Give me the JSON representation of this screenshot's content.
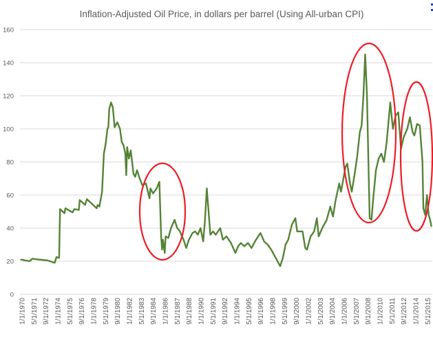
{
  "chart_data": {
    "type": "line",
    "title": "Inflation-Adjusted Oil Price, in dollars per barrel (Using All-urban CPI)",
    "xlabel": "",
    "ylabel": "",
    "ylim": [
      0,
      160
    ],
    "yticks": [
      0,
      20,
      40,
      60,
      80,
      100,
      120,
      140,
      160
    ],
    "grid": true,
    "legend": "none",
    "line_color": "#548235",
    "annotation_color": "#ee1c25",
    "xtick_labels": [
      "1/1/1970",
      "5/1/1971",
      "9/1/1972",
      "1/1/1974",
      "5/1/1975",
      "9/1/1976",
      "1/1/1978",
      "5/1/1979",
      "9/1/1980",
      "1/1/1982",
      "5/1/1983",
      "9/1/1984",
      "1/1/1986",
      "5/1/1987",
      "9/1/1988",
      "1/1/1990",
      "5/1/1991",
      "9/1/1992",
      "1/1/1994",
      "5/1/1995",
      "9/1/1996",
      "1/1/1998",
      "5/1/1999",
      "9/1/2000",
      "1/1/2002",
      "5/1/2003",
      "9/1/2004",
      "1/1/2006",
      "5/1/2007",
      "9/1/2008",
      "1/1/2010",
      "5/1/2011",
      "9/1/2012",
      "1/1/2014",
      "5/1/2015"
    ],
    "series": [
      {
        "name": "Inflation-Adjusted Oil Price",
        "x": [
          1970.0,
          1971.0,
          1971.3,
          1972.0,
          1973.0,
          1973.8,
          1974.0,
          1974.3,
          1974.4,
          1974.9,
          1975.0,
          1975.8,
          1976.0,
          1976.5,
          1976.6,
          1977.2,
          1977.4,
          1978.5,
          1978.6,
          1978.8,
          1979.1,
          1979.3,
          1979.5,
          1979.7,
          1979.8,
          1979.9,
          1980.1,
          1980.3,
          1980.5,
          1980.8,
          1981.1,
          1981.3,
          1981.5,
          1981.7,
          1981.8,
          1981.9,
          1982.1,
          1982.3,
          1982.5,
          1982.6,
          1982.8,
          1983.0,
          1983.3,
          1983.6,
          1984.0,
          1984.4,
          1984.5,
          1984.8,
          1985.2,
          1985.5,
          1985.7,
          1985.8,
          1985.9,
          1986.1,
          1986.2,
          1986.5,
          1986.8,
          1987.2,
          1987.5,
          1987.8,
          1988.2,
          1988.5,
          1988.8,
          1989.2,
          1989.5,
          1989.8,
          1990.1,
          1990.4,
          1990.6,
          1990.8,
          1991.0,
          1991.2,
          1991.5,
          1991.8,
          1992.3,
          1992.6,
          1993.0,
          1993.5,
          1994.0,
          1994.3,
          1994.6,
          1995.0,
          1995.4,
          1995.8,
          1996.3,
          1996.8,
          1997.2,
          1997.6,
          1998.0,
          1998.4,
          1998.8,
          1999.0,
          1999.3,
          1999.6,
          1999.9,
          2000.3,
          2000.7,
          2000.9,
          2001.5,
          2001.8,
          2002.0,
          2002.4,
          2002.8,
          2003.1,
          2003.3,
          2003.7,
          2004.2,
          2004.6,
          2004.9,
          2005.2,
          2005.6,
          2005.8,
          2006.3,
          2006.5,
          2006.8,
          2007.0,
          2007.3,
          2007.6,
          2007.9,
          2008.1,
          2008.3,
          2008.5,
          2008.7,
          2008.9,
          2009.0,
          2009.2,
          2009.4,
          2009.7,
          2010.0,
          2010.3,
          2010.6,
          2010.9,
          2011.3,
          2011.6,
          2011.9,
          2012.2,
          2012.5,
          2012.8,
          2013.2,
          2013.5,
          2013.8,
          2014.0,
          2014.3,
          2014.6,
          2014.9,
          2015.0,
          2015.2,
          2015.4,
          2015.6,
          2015.8,
          2015.9
        ],
        "values": [
          21,
          20,
          21.5,
          21,
          20.5,
          19,
          22.5,
          22,
          51.5,
          49,
          52,
          49.5,
          51.5,
          51,
          57,
          54,
          57.5,
          52,
          54,
          53,
          62,
          85,
          91,
          100,
          101,
          112,
          116,
          113,
          101,
          104,
          100,
          92,
          90,
          85,
          72,
          89,
          82,
          87,
          78,
          73,
          71,
          75,
          70,
          66,
          67,
          58,
          64,
          61,
          64,
          68,
          35,
          27,
          33,
          25,
          35,
          34,
          40,
          45,
          40,
          38,
          33,
          28,
          33,
          37,
          38,
          36,
          40,
          32,
          45,
          64,
          50,
          36,
          38,
          36,
          40,
          33,
          35,
          31,
          25,
          29,
          31,
          29,
          31,
          28,
          33,
          37,
          32,
          30,
          27,
          23,
          19,
          17,
          22,
          30,
          33,
          42,
          46,
          38,
          38,
          28,
          27,
          35,
          38,
          46,
          35,
          40,
          45,
          53,
          47,
          57,
          67,
          62,
          77,
          79,
          67,
          62,
          72,
          83,
          98,
          102,
          120,
          145,
          120,
          70,
          46,
          45,
          58,
          75,
          82,
          85,
          80,
          92,
          116,
          100,
          108,
          110,
          88,
          95,
          100,
          107,
          98,
          96,
          103,
          102,
          80,
          52,
          48,
          60,
          48,
          44,
          41
        ]
      }
    ]
  }
}
